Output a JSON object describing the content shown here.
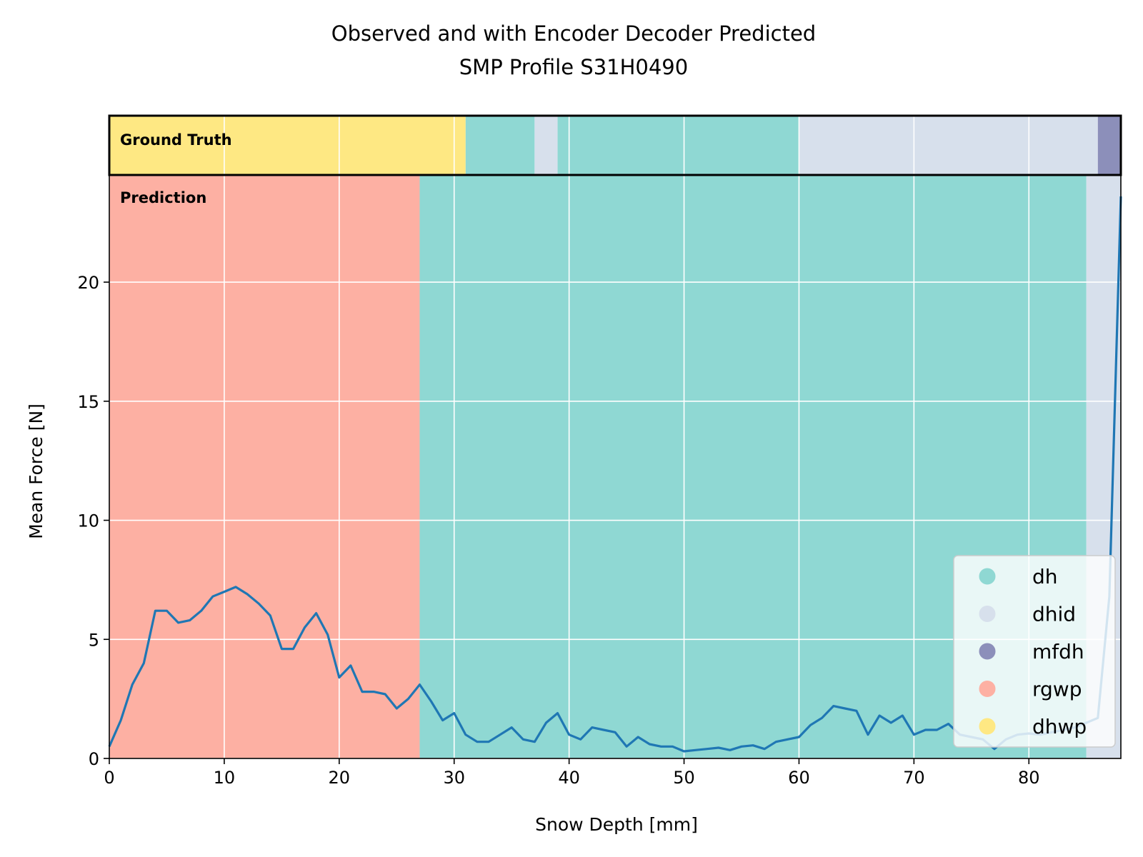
{
  "chart_data": {
    "type": "line",
    "title": "Observed and with Encoder Decoder Predicted",
    "subtitle": "SMP Profile S31H0490",
    "xlabel": "Snow Depth [mm]",
    "ylabel": "Mean Force [N]",
    "xlim": [
      0,
      88
    ],
    "ylim": [
      0,
      24.5
    ],
    "xticks": [
      "0",
      "10",
      "20",
      "30",
      "40",
      "50",
      "60",
      "70",
      "80"
    ],
    "yticks": [
      "0",
      "5",
      "10",
      "15",
      "20"
    ],
    "grid": true,
    "legend_position": "lower right",
    "band_labels": {
      "ground_truth": "Ground Truth",
      "prediction": "Prediction"
    },
    "classes": [
      {
        "name": "dh",
        "color": "#8fd8d3"
      },
      {
        "name": "dhid",
        "color": "#d7e0ec"
      },
      {
        "name": "mfdh",
        "color": "#8c8fba"
      },
      {
        "name": "rgwp",
        "color": "#fdb0a3"
      },
      {
        "name": "dhwp",
        "color": "#fee883"
      }
    ],
    "ground_truth_segments": [
      {
        "start": 0,
        "end": 31,
        "class": "dhwp"
      },
      {
        "start": 31,
        "end": 37,
        "class": "dh"
      },
      {
        "start": 37,
        "end": 39,
        "class": "dhid"
      },
      {
        "start": 39,
        "end": 60,
        "class": "dh"
      },
      {
        "start": 60,
        "end": 86,
        "class": "dhid"
      },
      {
        "start": 86,
        "end": 88,
        "class": "mfdh"
      }
    ],
    "prediction_segments": [
      {
        "start": 0,
        "end": 27,
        "class": "rgwp"
      },
      {
        "start": 27,
        "end": 85,
        "class": "dh"
      },
      {
        "start": 85,
        "end": 88,
        "class": "dhid"
      }
    ],
    "series": [
      {
        "color": "#1f77b4",
        "x": [
          0,
          1,
          2,
          3,
          4,
          5,
          6,
          7,
          8,
          9,
          10,
          11,
          12,
          13,
          14,
          15,
          16,
          17,
          18,
          19,
          20,
          21,
          22,
          23,
          24,
          25,
          26,
          27,
          28,
          29,
          30,
          31,
          32,
          33,
          34,
          35,
          36,
          37,
          38,
          39,
          40,
          41,
          42,
          43,
          44,
          45,
          46,
          47,
          48,
          49,
          50,
          51,
          52,
          53,
          54,
          55,
          56,
          57,
          58,
          59,
          60,
          61,
          62,
          63,
          64,
          65,
          66,
          67,
          68,
          69,
          70,
          71,
          72,
          73,
          74,
          75,
          76,
          77,
          78,
          79,
          80,
          81,
          82,
          83,
          84,
          85,
          86,
          87,
          88
        ],
        "y": [
          0.5,
          1.6,
          3.1,
          4.0,
          6.2,
          6.2,
          5.7,
          5.8,
          6.2,
          6.8,
          7.0,
          7.2,
          6.9,
          6.5,
          6.0,
          4.6,
          4.6,
          5.5,
          6.1,
          5.2,
          3.4,
          3.9,
          2.8,
          2.8,
          2.7,
          2.1,
          2.5,
          3.1,
          2.4,
          1.6,
          1.9,
          1.0,
          0.7,
          0.7,
          1.0,
          1.3,
          0.8,
          0.7,
          1.5,
          1.9,
          1.0,
          0.8,
          1.3,
          1.2,
          1.1,
          0.5,
          0.9,
          0.6,
          0.5,
          0.5,
          0.3,
          0.35,
          0.4,
          0.45,
          0.35,
          0.5,
          0.55,
          0.4,
          0.7,
          0.8,
          0.9,
          1.4,
          1.7,
          2.2,
          2.1,
          2.0,
          1.0,
          1.8,
          1.5,
          1.8,
          1.0,
          1.2,
          1.2,
          1.45,
          1.0,
          0.9,
          0.8,
          0.4,
          0.8,
          1.0,
          1.05,
          1.0,
          1.1,
          1.2,
          1.3,
          1.5,
          1.7,
          6.8,
          23.6
        ]
      }
    ]
  }
}
